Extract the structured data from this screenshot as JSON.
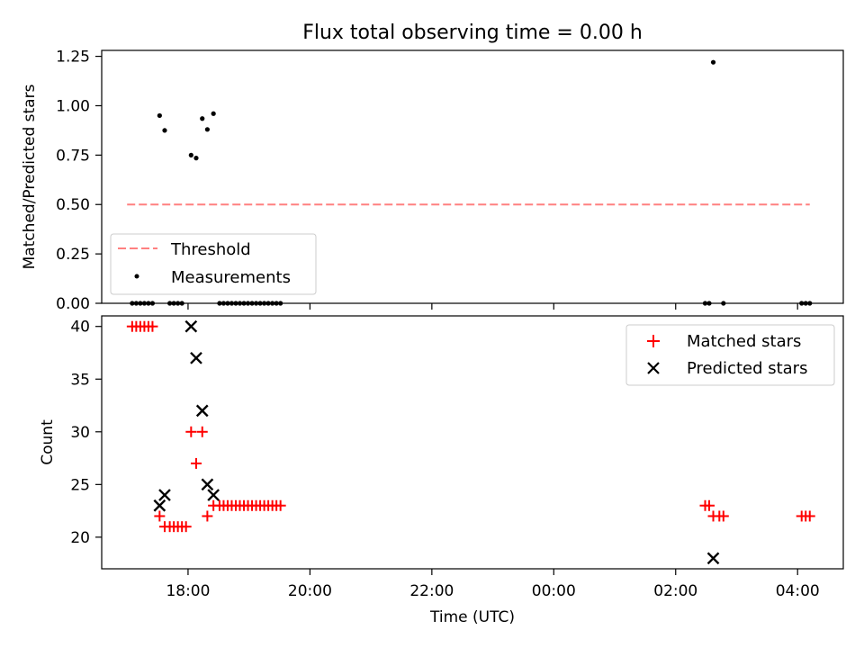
{
  "chart_data": [
    {
      "type": "scatter",
      "title": "Flux total observing time = 0.00 h",
      "ylabel": "Matched/Predicted stars",
      "xlim": [
        "16:35",
        "04:45"
      ],
      "ylim": [
        0,
        1.28
      ],
      "yticks": [
        "0.00",
        "0.25",
        "0.50",
        "0.75",
        "1.00",
        "1.25"
      ],
      "legend_position": "lower-left",
      "threshold": {
        "name": "Threshold",
        "value": 0.5,
        "x_start": "17:00",
        "x_end": "04:12",
        "color": "#ff8080",
        "style": "dashed"
      },
      "measurements": {
        "name": "Measurements",
        "color": "#000000",
        "points": [
          [
            "17:32",
            0.95
          ],
          [
            "17:37",
            0.875
          ],
          [
            "18:03",
            0.75
          ],
          [
            "18:08",
            0.735
          ],
          [
            "18:14",
            0.935
          ],
          [
            "18:19",
            0.88
          ],
          [
            "18:25",
            0.96
          ],
          [
            "17:05",
            0
          ],
          [
            "17:09",
            0
          ],
          [
            "17:13",
            0
          ],
          [
            "17:17",
            0
          ],
          [
            "17:21",
            0
          ],
          [
            "17:25",
            0
          ],
          [
            "17:42",
            0
          ],
          [
            "17:46",
            0
          ],
          [
            "17:50",
            0
          ],
          [
            "17:54",
            0
          ],
          [
            "18:31",
            0
          ],
          [
            "18:35",
            0
          ],
          [
            "18:39",
            0
          ],
          [
            "18:43",
            0
          ],
          [
            "18:47",
            0
          ],
          [
            "18:51",
            0
          ],
          [
            "18:55",
            0
          ],
          [
            "18:59",
            0
          ],
          [
            "19:03",
            0
          ],
          [
            "19:07",
            0
          ],
          [
            "19:11",
            0
          ],
          [
            "19:15",
            0
          ],
          [
            "19:19",
            0
          ],
          [
            "19:23",
            0
          ],
          [
            "19:27",
            0
          ],
          [
            "19:31",
            0
          ],
          [
            "02:29",
            0
          ],
          [
            "02:33",
            0
          ],
          [
            "02:37",
            1.22
          ],
          [
            "02:47",
            0
          ],
          [
            "04:04",
            0
          ],
          [
            "04:08",
            0
          ],
          [
            "04:12",
            0
          ]
        ]
      }
    },
    {
      "type": "scatter",
      "xlabel": "Time (UTC)",
      "ylabel": "Count",
      "xlim": [
        "16:35",
        "04:45"
      ],
      "ylim": [
        17,
        41
      ],
      "yticks": [
        "20",
        "25",
        "30",
        "35",
        "40"
      ],
      "xticks": [
        "18:00",
        "20:00",
        "22:00",
        "00:00",
        "02:00",
        "04:00"
      ],
      "legend_position": "top-right",
      "series": [
        {
          "name": "Matched stars",
          "marker": "plus",
          "color": "#ff0000",
          "points": [
            [
              "17:05",
              40
            ],
            [
              "17:09",
              40
            ],
            [
              "17:13",
              40
            ],
            [
              "17:17",
              40
            ],
            [
              "17:21",
              40
            ],
            [
              "17:25",
              40
            ],
            [
              "17:32",
              22
            ],
            [
              "17:37",
              21
            ],
            [
              "17:42",
              21
            ],
            [
              "17:46",
              21
            ],
            [
              "17:50",
              21
            ],
            [
              "17:54",
              21
            ],
            [
              "17:58",
              21
            ],
            [
              "18:03",
              30
            ],
            [
              "18:08",
              27
            ],
            [
              "18:14",
              30
            ],
            [
              "18:19",
              22
            ],
            [
              "18:25",
              23
            ],
            [
              "18:31",
              23
            ],
            [
              "18:35",
              23
            ],
            [
              "18:39",
              23
            ],
            [
              "18:43",
              23
            ],
            [
              "18:47",
              23
            ],
            [
              "18:51",
              23
            ],
            [
              "18:55",
              23
            ],
            [
              "18:59",
              23
            ],
            [
              "19:03",
              23
            ],
            [
              "19:07",
              23
            ],
            [
              "19:11",
              23
            ],
            [
              "19:15",
              23
            ],
            [
              "19:19",
              23
            ],
            [
              "19:23",
              23
            ],
            [
              "19:27",
              23
            ],
            [
              "19:31",
              23
            ],
            [
              "02:29",
              23
            ],
            [
              "02:33",
              23
            ],
            [
              "02:37",
              22
            ],
            [
              "02:43",
              22
            ],
            [
              "02:47",
              22
            ],
            [
              "04:04",
              22
            ],
            [
              "04:08",
              22
            ],
            [
              "04:12",
              22
            ]
          ]
        },
        {
          "name": "Predicted stars",
          "marker": "x",
          "color": "#000000",
          "points": [
            [
              "17:32",
              23
            ],
            [
              "17:37",
              24
            ],
            [
              "18:03",
              40
            ],
            [
              "18:08",
              37
            ],
            [
              "18:14",
              32
            ],
            [
              "18:19",
              25
            ],
            [
              "18:25",
              24
            ],
            [
              "02:37",
              18
            ]
          ]
        }
      ]
    }
  ]
}
